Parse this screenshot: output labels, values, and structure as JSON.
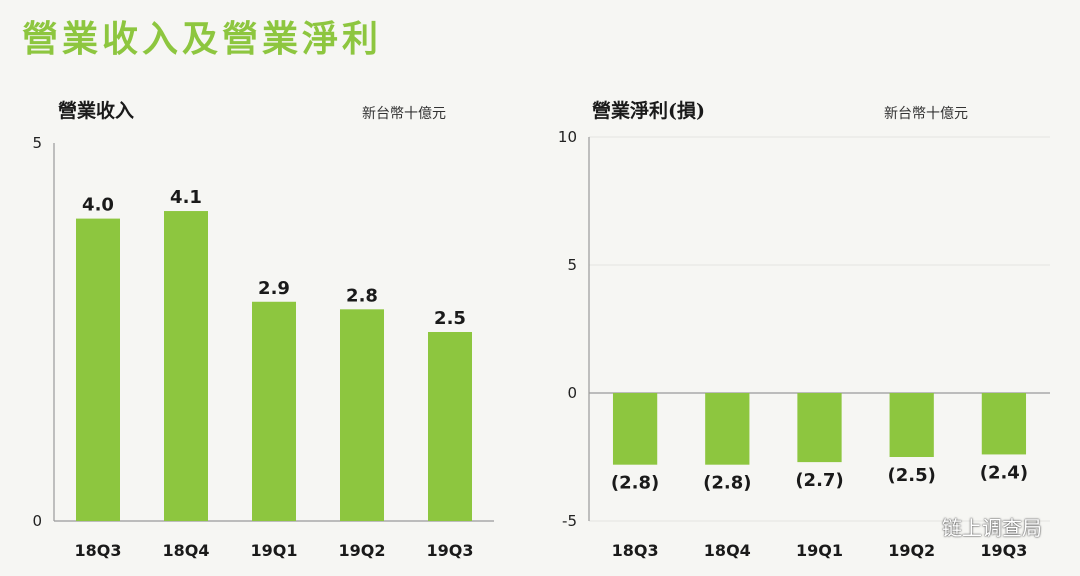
{
  "page_title": "營業收入及營業淨利",
  "watermark": "链上调查局",
  "colors": {
    "accent": "#8dc63f",
    "background": "#f6f6f3"
  },
  "chart_data": [
    {
      "type": "bar",
      "title": "營業收入",
      "unit": "新台幣十億元",
      "categories": [
        "18Q3",
        "18Q4",
        "19Q1",
        "19Q2",
        "19Q3"
      ],
      "values": [
        4.0,
        4.1,
        2.9,
        2.8,
        2.5
      ],
      "data_labels": [
        "4.0",
        "4.1",
        "2.9",
        "2.8",
        "2.5"
      ],
      "yticks": [
        "0",
        "5"
      ],
      "ylim": [
        0,
        5
      ],
      "grid": false
    },
    {
      "type": "bar",
      "title": "營業淨利(損)",
      "unit": "新台幣十億元",
      "categories": [
        "18Q3",
        "18Q4",
        "19Q1",
        "19Q2",
        "19Q3"
      ],
      "values": [
        -2.8,
        -2.8,
        -2.7,
        -2.5,
        -2.4
      ],
      "data_labels": [
        "(2.8)",
        "(2.8)",
        "(2.7)",
        "(2.5)",
        "(2.4)"
      ],
      "yticks": [
        "-5",
        "0",
        "5",
        "10"
      ],
      "ylim": [
        -5,
        10
      ],
      "grid": true
    }
  ]
}
